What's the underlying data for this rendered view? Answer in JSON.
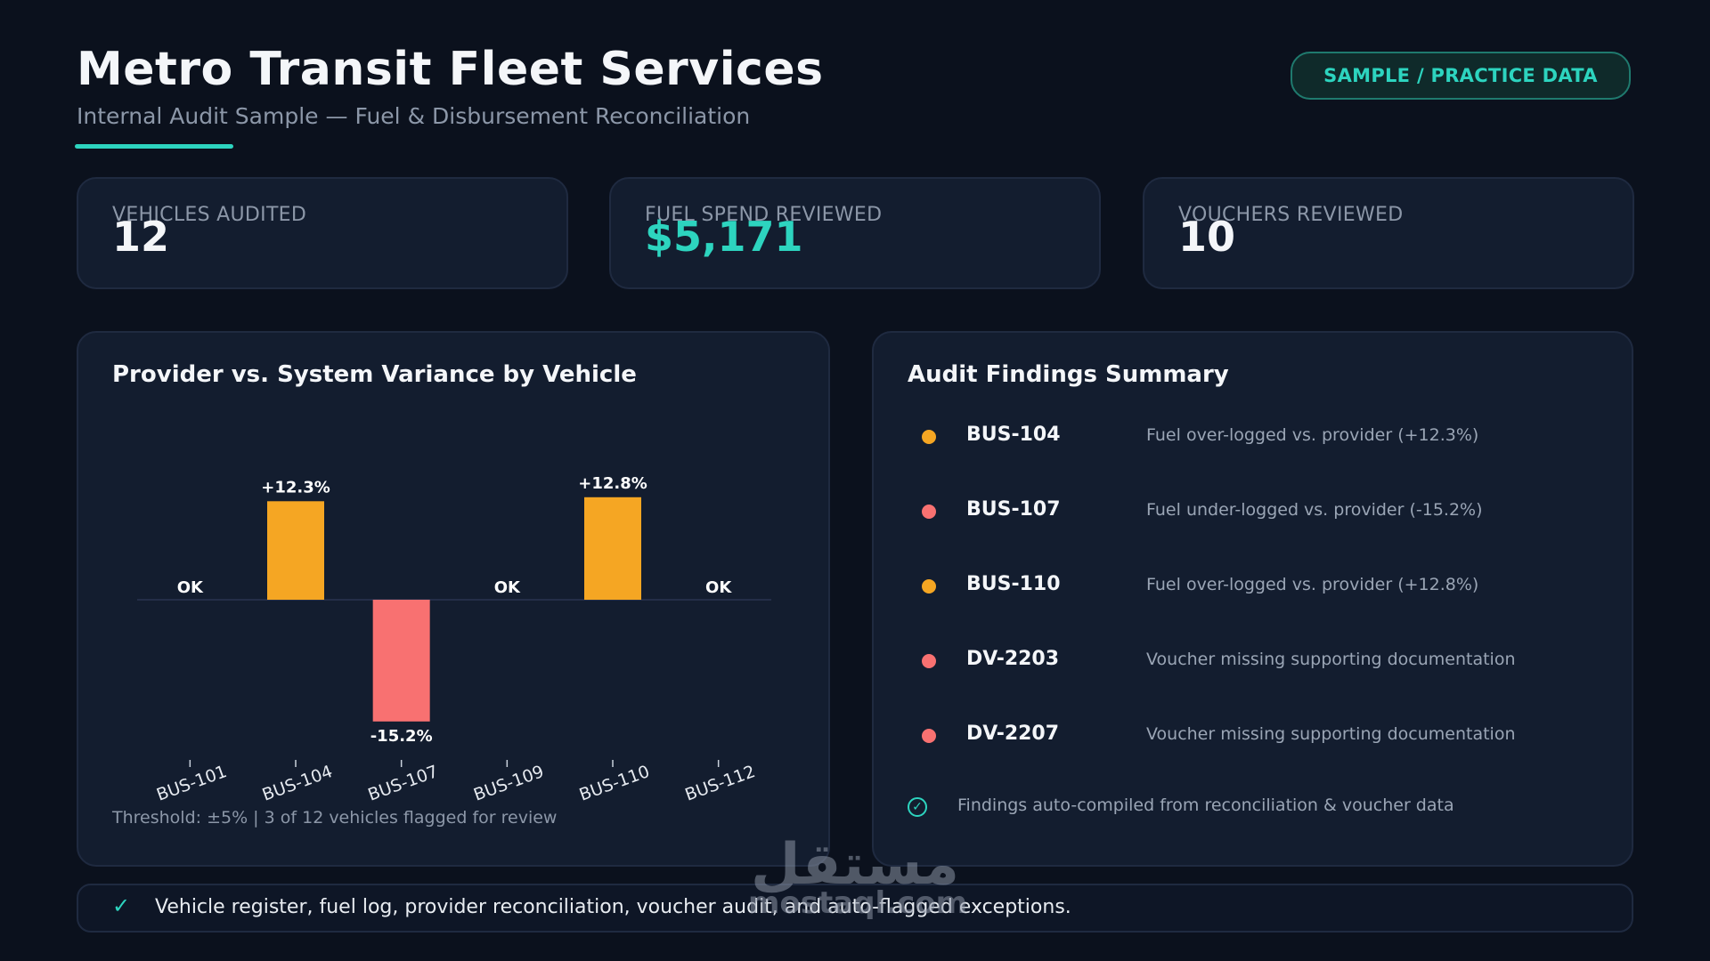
{
  "header": {
    "title": "Metro Transit Fleet Services",
    "subtitle": "Internal Audit Sample — Fuel & Disbursement Reconciliation",
    "badge": "SAMPLE / PRACTICE DATA"
  },
  "stats": [
    {
      "label": "VEHICLES AUDITED",
      "value": "12"
    },
    {
      "label": "FUEL SPEND REVIEWED",
      "value": "$5,171"
    },
    {
      "label": "VOUCHERS REVIEWED",
      "value": "10"
    }
  ],
  "chart_panel": {
    "title": "Provider vs. System Variance by Vehicle",
    "footnote": "Threshold: ±5%  |  3 of 12 vehicles flagged for review"
  },
  "chart_data": {
    "type": "bar",
    "title": "Provider vs. System Variance by Vehicle",
    "categories": [
      "BUS-101",
      "BUS-104",
      "BUS-107",
      "BUS-109",
      "BUS-110",
      "BUS-112"
    ],
    "values": [
      0,
      12.3,
      -15.2,
      0,
      12.8,
      0
    ],
    "data_labels": [
      "OK",
      "+12.3%",
      "-15.2%",
      "OK",
      "+12.8%",
      "OK"
    ],
    "bar_colors": [
      "#f5a623",
      "#f5a623",
      "#f87171",
      "#f5a623",
      "#f5a623",
      "#f5a623"
    ],
    "ylim": [
      -20,
      15
    ],
    "grid": false
  },
  "findings": {
    "title": "Audit Findings Summary",
    "items": [
      {
        "id": "BUS-104",
        "text": "Fuel over-logged vs. provider (+12.3%)",
        "color": "#f5a623"
      },
      {
        "id": "BUS-107",
        "text": "Fuel under-logged vs. provider (-15.2%)",
        "color": "#f87171"
      },
      {
        "id": "BUS-110",
        "text": "Fuel over-logged vs. provider (+12.8%)",
        "color": "#f5a623"
      },
      {
        "id": "DV-2203",
        "text": "Voucher missing supporting documentation",
        "color": "#f87171"
      },
      {
        "id": "DV-2207",
        "text": "Voucher missing supporting documentation",
        "color": "#f87171"
      }
    ],
    "note": "Findings auto-compiled from reconciliation & voucher data"
  },
  "footer": {
    "check_glyph": "✓",
    "text": "Vehicle register, fuel log, provider reconciliation, voucher audit, and auto-flagged exceptions."
  },
  "watermark": {
    "arabic": "مستقل",
    "latin": "mostaql.com"
  },
  "colors": {
    "accent": "#2dd4bf",
    "over": "#f5a623",
    "under": "#f87171",
    "background": "#0b111d",
    "card": "#131d2f"
  }
}
